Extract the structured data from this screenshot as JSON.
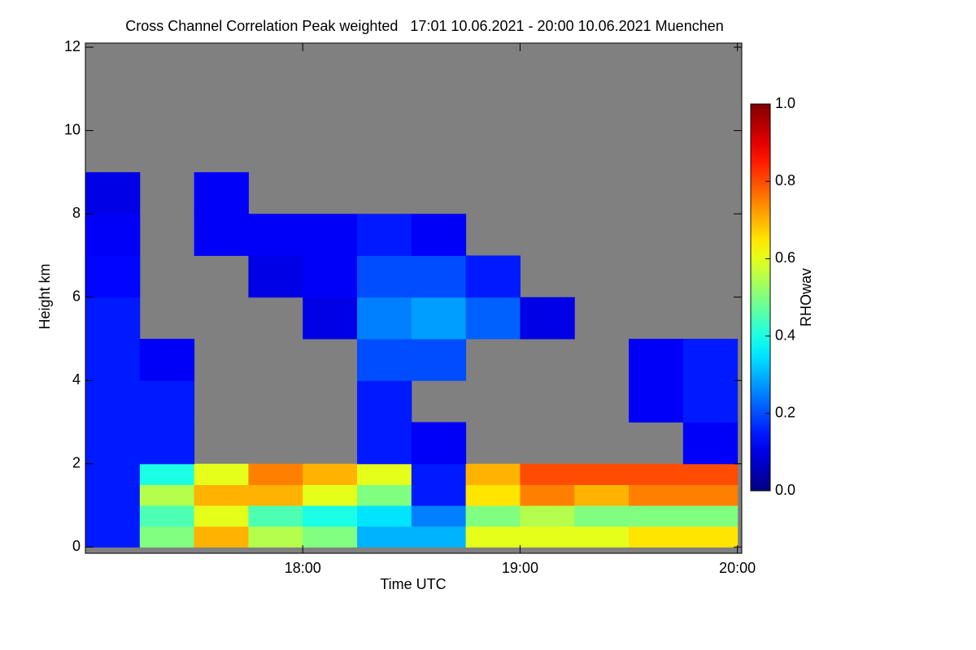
{
  "chart_data": {
    "type": "heatmap",
    "title": "Cross Channel Correlation Peak weighted   17:01 10.06.2021 - 20:00 10.06.2021 Muenchen",
    "x_label": "Time UTC",
    "y_label": "Height km",
    "colorbar_label": "RHOwav",
    "colormap": "jet",
    "missing_color": "#808080",
    "xlim": [
      17,
      20.02
    ],
    "xticks": [
      {
        "value": 18,
        "label": "18:00"
      },
      {
        "value": 19,
        "label": "19:00"
      },
      {
        "value": 20,
        "label": "20:00"
      }
    ],
    "ylim": [
      -0.15,
      12.1
    ],
    "yticks": [
      0,
      2,
      4,
      6,
      8,
      10,
      12
    ],
    "zlim": [
      0,
      1
    ],
    "zticks": [
      {
        "value": 0,
        "label": "0.0"
      },
      0.2,
      0.4,
      0.6,
      0.8,
      {
        "value": 1,
        "label": "1.0"
      }
    ],
    "x_bins": [
      17,
      17.25,
      17.5,
      17.75,
      18,
      18.25,
      18.5,
      18.75,
      19,
      19.25,
      19.5,
      19.75,
      20
    ],
    "y_bins": [
      0,
      0.5,
      1,
      1.5,
      2,
      3,
      4,
      5,
      6,
      7,
      8,
      9
    ],
    "z": [
      [
        0.15,
        0.5,
        0.7,
        0.55,
        0.5,
        0.3,
        0.3,
        0.6,
        0.6,
        0.6,
        0.65,
        0.65
      ],
      [
        0.15,
        0.45,
        0.6,
        0.45,
        0.4,
        0.35,
        0.25,
        0.5,
        0.55,
        0.5,
        0.5,
        0.5
      ],
      [
        0.15,
        0.55,
        0.7,
        0.7,
        0.6,
        0.5,
        0.15,
        0.65,
        0.75,
        0.7,
        0.75,
        0.75
      ],
      [
        0.15,
        0.4,
        0.6,
        0.75,
        0.7,
        0.6,
        0.15,
        0.7,
        0.8,
        0.8,
        0.8,
        0.8
      ],
      [
        0.15,
        0.15,
        null,
        null,
        null,
        0.15,
        0.12,
        null,
        null,
        null,
        null,
        0.12
      ],
      [
        0.15,
        0.15,
        null,
        null,
        null,
        0.15,
        null,
        null,
        null,
        null,
        0.12,
        0.15
      ],
      [
        0.15,
        0.12,
        null,
        null,
        null,
        0.2,
        0.2,
        null,
        null,
        null,
        0.12,
        0.15
      ],
      [
        0.15,
        null,
        null,
        null,
        0.1,
        0.25,
        0.28,
        0.22,
        0.1,
        null,
        null,
        null
      ],
      [
        0.13,
        null,
        null,
        0.1,
        0.12,
        0.2,
        0.2,
        0.15,
        null,
        null,
        null,
        null
      ],
      [
        0.12,
        null,
        0.12,
        0.12,
        0.12,
        0.15,
        0.12,
        null,
        null,
        null,
        null,
        null
      ],
      [
        0.1,
        null,
        0.12,
        null,
        null,
        null,
        null,
        null,
        null,
        null,
        null,
        null
      ]
    ]
  }
}
